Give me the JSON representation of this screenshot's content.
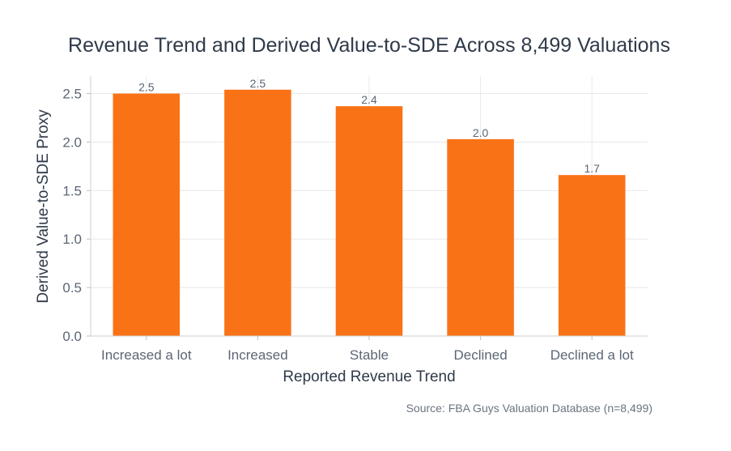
{
  "chart_data": {
    "type": "bar",
    "title": "Revenue Trend and Derived Value-to-SDE Across 8,499 Valuations",
    "xlabel": "Reported Revenue Trend",
    "ylabel": "Derived Value-to-SDE Proxy",
    "categories": [
      "Increased a lot",
      "Increased",
      "Stable",
      "Declined",
      "Declined a lot"
    ],
    "values": [
      2.5,
      2.54,
      2.37,
      2.03,
      1.66
    ],
    "data_labels": [
      "2.5",
      "2.5",
      "2.4",
      "2.0",
      "1.7"
    ],
    "ylim": [
      0,
      2.68
    ],
    "yticks": [
      0.0,
      0.5,
      1.0,
      1.5,
      2.0,
      2.5
    ],
    "ytick_labels": [
      "0.0",
      "0.5",
      "1.0",
      "1.5",
      "2.0",
      "2.5"
    ],
    "grid": true,
    "bar_color": "#f97316",
    "source": "Source: FBA Guys Valuation Database (n=8,499)"
  }
}
